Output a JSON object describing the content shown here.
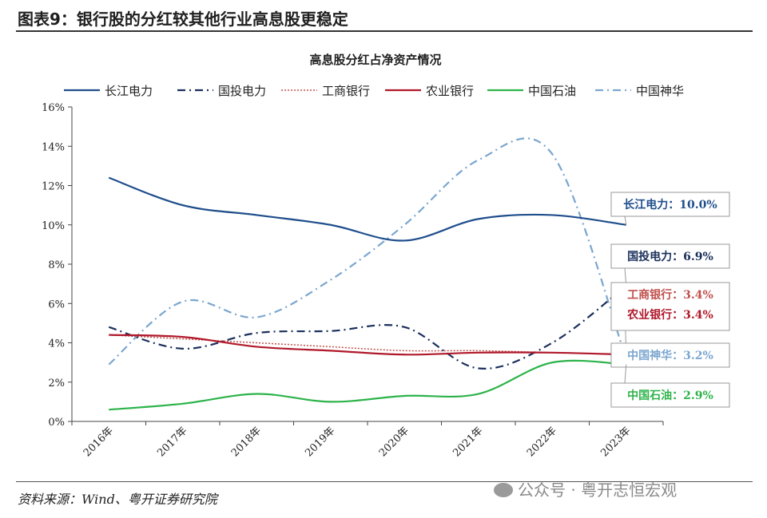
{
  "figure": {
    "title": "图表9：银行股的分红较其他行业高息股更稳定",
    "source": "资料来源：Wind、粤开证券研究院",
    "watermark": "公众号 · 粤开志恒宏观"
  },
  "chart_data": {
    "type": "line",
    "title": "高息股分红占净资产情况",
    "xlabel": "",
    "ylabel": "",
    "ylim": [
      0,
      16
    ],
    "yticks": [
      "0%",
      "2%",
      "4%",
      "6%",
      "8%",
      "10%",
      "12%",
      "14%",
      "16%"
    ],
    "categories": [
      "2016年",
      "2017年",
      "2018年",
      "2019年",
      "2020年",
      "2021年",
      "2022年",
      "2023年"
    ],
    "legend_position": "top",
    "series": [
      {
        "name": "长江电力",
        "color": "#1f4e8c",
        "style": "solid",
        "values": [
          12.4,
          11.0,
          10.5,
          10.0,
          9.2,
          10.3,
          10.5,
          10.0
        ],
        "annotation": "长江电力：10.0%"
      },
      {
        "name": "国投电力",
        "color": "#1a2f5c",
        "style": "dashdot",
        "values": [
          4.8,
          3.7,
          4.5,
          4.6,
          4.8,
          2.7,
          4.0,
          6.9
        ],
        "annotation": "国投电力：6.9%"
      },
      {
        "name": "工商银行",
        "color": "#c0504d",
        "style": "dotted",
        "values": [
          4.4,
          4.2,
          4.0,
          3.8,
          3.6,
          3.6,
          3.5,
          3.4
        ],
        "annotation": "工商银行：3.4%"
      },
      {
        "name": "农业银行",
        "color": "#b0182a",
        "style": "solid",
        "values": [
          4.4,
          4.3,
          3.8,
          3.6,
          3.4,
          3.5,
          3.5,
          3.4
        ],
        "annotation": "农业银行：3.4%"
      },
      {
        "name": "中国石油",
        "color": "#2db34a",
        "style": "solid",
        "values": [
          0.6,
          0.9,
          1.4,
          1.0,
          1.3,
          1.4,
          3.0,
          2.9
        ],
        "annotation": "中国石油：2.9%"
      },
      {
        "name": "中国神华",
        "color": "#7aa6d0",
        "style": "dashdot",
        "values": [
          2.9,
          6.1,
          5.3,
          7.2,
          10.0,
          13.3,
          13.6,
          3.2
        ],
        "annotation": "中国神华：3.2%"
      }
    ]
  }
}
